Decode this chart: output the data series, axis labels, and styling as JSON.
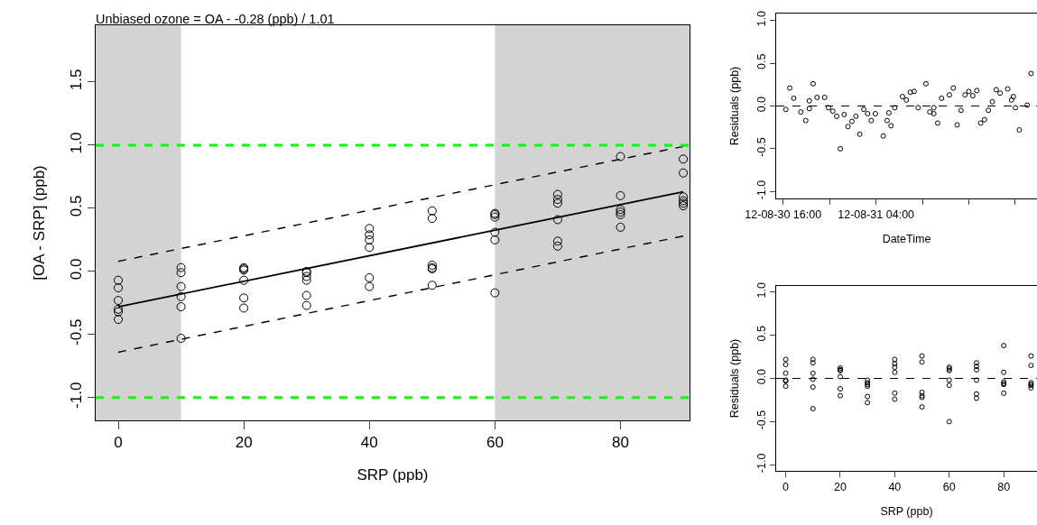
{
  "chart_data": [
    {
      "type": "scatter",
      "title": "Unbiased ozone = OA - -0.28 (ppb) / 1.01",
      "xlabel": "SRP (ppb)",
      "ylabel": "[OA - SRP] (ppb)",
      "grid": false,
      "xlim": [
        -3.6,
        91
      ],
      "ylim": [
        -1.18,
        1.95
      ],
      "xticks": [
        0,
        20,
        40,
        60,
        80
      ],
      "yticks": [
        {
          "value": -1,
          "label": "-1.0"
        },
        {
          "value": -0.5,
          "label": "-0.5"
        },
        {
          "value": 0,
          "label": "0.0"
        },
        {
          "value": 0.5,
          "label": "0.5"
        },
        {
          "value": 1,
          "label": "1.0"
        },
        {
          "value": 1.5,
          "label": "1.5"
        }
      ],
      "bands": [
        {
          "axis": "x",
          "from": -3.6,
          "to": 10,
          "color": "#d3d3d3"
        },
        {
          "axis": "x",
          "from": 60,
          "to": 91,
          "color": "#d3d3d3"
        }
      ],
      "ref_lines": [
        {
          "axis": "y",
          "value": 1,
          "color": "#00ff00",
          "line_style": "dashed"
        },
        {
          "axis": "y",
          "value": -1,
          "color": "#00ff00",
          "line_style": "dashed"
        }
      ],
      "series": [
        {
          "marker": "circle",
          "color": "#000000",
          "x": [
            0,
            0,
            0,
            0,
            0,
            0,
            10,
            10,
            10,
            10,
            10,
            10,
            20,
            20,
            20,
            20,
            20,
            20,
            30,
            30,
            30,
            30,
            30,
            30,
            40,
            40,
            40,
            40,
            40,
            40,
            50,
            50,
            50,
            50,
            50,
            50,
            60,
            60,
            60,
            60,
            60,
            60,
            70,
            70,
            70,
            70,
            70,
            70,
            80,
            80,
            80,
            80,
            80,
            80,
            90,
            90,
            90,
            90,
            90,
            90
          ],
          "values": [
            -0.07,
            -0.13,
            -0.23,
            -0.3,
            -0.32,
            -0.38,
            0.03,
            -0.01,
            -0.12,
            -0.2,
            -0.28,
            -0.53,
            0.03,
            0.02,
            0.01,
            -0.07,
            -0.21,
            -0.29,
            0,
            -0.01,
            -0.04,
            -0.07,
            -0.19,
            -0.27,
            0.34,
            0.29,
            0.25,
            0.19,
            -0.05,
            -0.12,
            0.48,
            0.42,
            0.05,
            0.03,
            0.02,
            -0.11,
            0.46,
            0.45,
            0.43,
            0.31,
            0.25,
            -0.17,
            0.61,
            0.57,
            0.54,
            0.41,
            0.24,
            0.2,
            0.91,
            0.6,
            0.49,
            0.47,
            0.45,
            0.35,
            0.89,
            0.78,
            0.59,
            0.56,
            0.54,
            0.52
          ]
        },
        {
          "type": "line",
          "marker": "none",
          "color": "#000000",
          "line_style": "solid",
          "x": [
            0,
            90
          ],
          "values": [
            -0.28,
            0.63
          ]
        },
        {
          "type": "line",
          "marker": "none",
          "color": "#000000",
          "line_style": "dashed",
          "x": [
            0,
            90
          ],
          "values": [
            0.08,
            0.99
          ]
        },
        {
          "type": "line",
          "marker": "none",
          "color": "#000000",
          "line_style": "dashed",
          "x": [
            0,
            90
          ],
          "values": [
            -0.64,
            0.28
          ]
        }
      ]
    },
    {
      "type": "scatter",
      "xlabel": "DateTime",
      "ylabel": "Residuals (ppb)",
      "marker": "circle",
      "grid": false,
      "xlim": [
        "--08-30T15:06",
        "--09-01T00:48"
      ],
      "ylim": [
        -1.08,
        1.08
      ],
      "xticks": [
        {
          "value": "--08-30T16:00",
          "label": "12-08-30 16:00"
        },
        {
          "value": "--08-30T22:00",
          "label": null
        },
        {
          "value": "--08-31T04:00",
          "label": "12-08-31 04:00"
        },
        {
          "value": "--08-31T10:00",
          "label": null
        },
        {
          "value": "--08-31T16:00",
          "label": null
        },
        {
          "value": "--08-31T22:00",
          "label": null
        }
      ],
      "yticks": [
        {
          "value": -1,
          "label": "-1.0"
        },
        {
          "value": -0.5,
          "label": "-0.5"
        },
        {
          "value": 0,
          "label": "0.0"
        },
        {
          "value": 0.5,
          "label": "0.5"
        },
        {
          "value": 1,
          "label": "1.0"
        }
      ],
      "ref_lines": [
        {
          "axis": "y",
          "value": 0,
          "color": "#000000",
          "line_style": "dashed"
        }
      ],
      "series": [
        {
          "color": "#000000",
          "x": [
            "--08-30T16:21",
            "--08-30T16:51",
            "--08-30T17:22",
            "--08-30T18:17",
            "--08-30T18:55",
            "--08-30T19:23",
            "--08-30T19:23",
            "--08-30T19:53",
            "--08-30T20:23",
            "--08-30T21:22",
            "--08-30T21:52",
            "--08-30T22:25",
            "--08-30T22:55",
            "--08-30T23:23",
            "--08-30T23:53",
            "--08-31T00:23",
            "--08-31T00:53",
            "--08-31T01:24",
            "--08-31T01:54",
            "--08-31T02:25",
            "--08-31T02:55",
            "--08-31T03:23",
            "--08-31T03:55",
            "--08-31T04:56",
            "--08-31T05:26",
            "--08-31T05:40",
            "--08-31T05:56",
            "--08-31T06:25",
            "--08-31T07:25",
            "--08-31T07:55",
            "--08-31T08:26",
            "--08-31T08:56",
            "--08-31T09:26",
            "--08-31T10:27",
            "--08-31T10:57",
            "--08-31T11:28",
            "--08-31T11:28",
            "--08-31T11:58",
            "--08-31T12:28",
            "--08-31T13:29",
            "--08-31T13:59",
            "--08-31T14:29",
            "--08-31T14:59",
            "--08-31T15:30",
            "--08-31T16:00",
            "--08-31T16:30",
            "--08-31T17:01",
            "--08-31T17:31",
            "--08-31T18:01",
            "--08-31T18:31",
            "--08-31T19:02",
            "--08-31T19:32",
            "--08-31T20:02",
            "--08-31T21:01",
            "--08-31T21:31",
            "--08-31T21:45",
            "--08-31T22:01",
            "--08-31T22:31",
            "--08-31T23:32",
            "--09-01T00:02"
          ],
          "values": [
            -0.04,
            0.21,
            0.09,
            -0.07,
            -0.17,
            0.06,
            -0.03,
            0.26,
            0.1,
            0.1,
            -0.02,
            -0.06,
            -0.12,
            -0.5,
            -0.1,
            -0.24,
            -0.18,
            -0.12,
            -0.33,
            -0.04,
            -0.09,
            -0.17,
            -0.09,
            -0.35,
            -0.17,
            -0.08,
            -0.23,
            -0.02,
            0.11,
            0.07,
            0.16,
            0.17,
            -0.02,
            0.26,
            -0.07,
            -0.09,
            -0.02,
            -0.2,
            0.09,
            0.13,
            0.21,
            -0.22,
            -0.05,
            0.13,
            0.17,
            0.12,
            0.18,
            -0.2,
            -0.16,
            -0.05,
            0.05,
            0.19,
            0.15,
            0.2,
            0.07,
            0.11,
            -0.02,
            -0.28,
            0.01,
            0.38
          ]
        }
      ]
    },
    {
      "type": "scatter",
      "xlabel": "SRP (ppb)",
      "ylabel": "Residuals (ppb)",
      "marker": "circle",
      "grid": false,
      "xlim": [
        -3.5,
        92.2
      ],
      "ylim": [
        -1.07,
        1.07
      ],
      "xticks": [
        0,
        20,
        40,
        60,
        80
      ],
      "yticks": [
        {
          "value": -1,
          "label": "-1.0"
        },
        {
          "value": -0.5,
          "label": "-0.5"
        },
        {
          "value": 0,
          "label": "0.0"
        },
        {
          "value": 0.5,
          "label": "0.5"
        },
        {
          "value": 1,
          "label": "1.0"
        }
      ],
      "ref_lines": [
        {
          "axis": "y",
          "value": 0,
          "color": "#000000",
          "line_style": "dashed"
        }
      ],
      "series": [
        {
          "color": "#000000",
          "x": [
            0,
            0,
            0,
            0,
            0,
            0,
            10,
            10,
            10,
            10,
            10,
            10,
            20,
            20,
            20,
            20,
            20,
            20,
            30,
            30,
            30,
            30,
            30,
            30,
            40,
            40,
            40,
            40,
            40,
            40,
            50,
            50,
            50,
            50,
            50,
            50,
            60,
            60,
            60,
            60,
            60,
            60,
            70,
            70,
            70,
            70,
            70,
            70,
            80,
            80,
            80,
            80,
            80,
            80,
            90,
            90,
            90,
            90,
            90,
            90
          ],
          "values": [
            0.22,
            0.16,
            0.06,
            -0.02,
            -0.03,
            -0.09,
            0.22,
            0.18,
            0.06,
            -0.01,
            -0.1,
            -0.35,
            0.12,
            0.1,
            0.09,
            0.02,
            -0.12,
            -0.2,
            -0.02,
            -0.05,
            -0.07,
            -0.09,
            -0.21,
            -0.28,
            0.22,
            0.17,
            0.13,
            0.07,
            -0.17,
            -0.24,
            0.26,
            0.19,
            -0.16,
            -0.2,
            -0.22,
            -0.33,
            0.13,
            0.11,
            0.09,
            -0.02,
            -0.08,
            -0.5,
            0.18,
            0.14,
            0.1,
            -0.02,
            -0.18,
            -0.23,
            0.38,
            0.07,
            -0.04,
            -0.06,
            -0.07,
            -0.17,
            0.26,
            0.15,
            -0.05,
            -0.07,
            -0.08,
            -0.11
          ]
        }
      ]
    }
  ]
}
